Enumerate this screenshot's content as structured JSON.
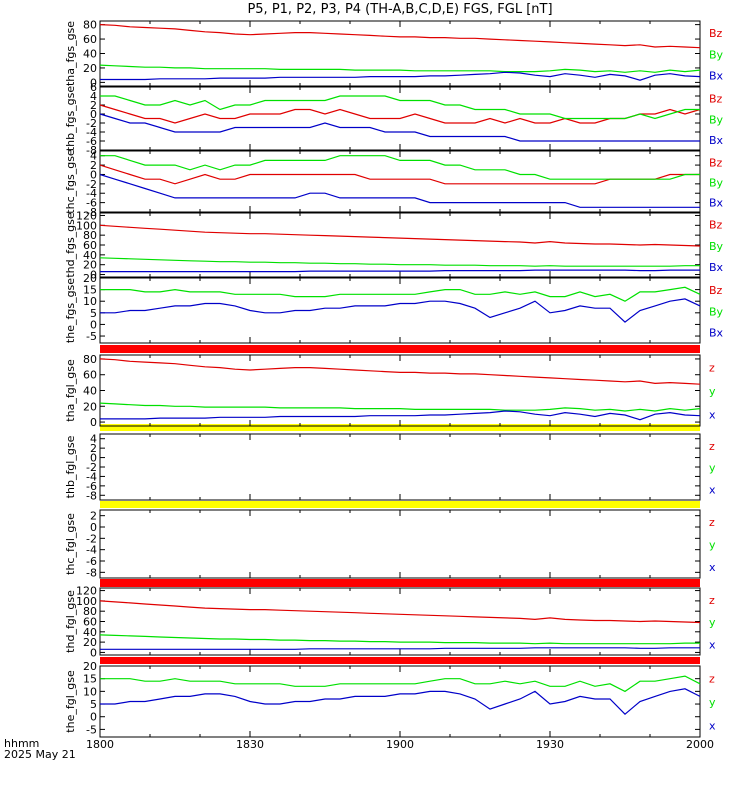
{
  "title": "P5, P1, P2, P3, P4 (TH-A,B,C,D,E) FGS, FGL [nT]",
  "footer": {
    "hhmm_label": "hhmm",
    "date_label": "2025 May 21"
  },
  "x_axis": {
    "ticks": [
      "1800",
      "1830",
      "1900",
      "1930",
      "2000"
    ]
  },
  "colors": {
    "z": "#e00000",
    "y": "#00e000",
    "x": "#0000c8",
    "bar_red": "#ff0000",
    "bar_yellow": "#ffff00"
  },
  "chart_data": [
    {
      "type": "line",
      "ylabel": "tha_fgs_gse",
      "yticks": [
        0,
        20,
        40,
        60,
        80
      ],
      "ylim": [
        -5,
        85
      ],
      "series": [
        {
          "name": "Bz",
          "color": "#e00000",
          "values": [
            80,
            79,
            77,
            76,
            75,
            74,
            72,
            70,
            69,
            67,
            66,
            67,
            68,
            69,
            69,
            68,
            67,
            66,
            65,
            64,
            63,
            63,
            62,
            62,
            61,
            61,
            60,
            59,
            58,
            57,
            56,
            55,
            54,
            53,
            52,
            51,
            52,
            49,
            50,
            49,
            48
          ]
        },
        {
          "name": "By",
          "color": "#00e000",
          "values": [
            24,
            23,
            22,
            21,
            21,
            20,
            20,
            19,
            19,
            19,
            19,
            19,
            18,
            18,
            18,
            18,
            18,
            17,
            17,
            17,
            17,
            16,
            16,
            16,
            16,
            16,
            16,
            15,
            15,
            15,
            16,
            18,
            17,
            15,
            16,
            14,
            16,
            14,
            17,
            15,
            17
          ]
        },
        {
          "name": "Bx",
          "color": "#0000c8",
          "values": [
            4,
            4,
            4,
            4,
            5,
            5,
            5,
            5,
            6,
            6,
            6,
            6,
            7,
            7,
            7,
            7,
            7,
            7,
            8,
            8,
            8,
            8,
            9,
            9,
            10,
            11,
            12,
            14,
            13,
            10,
            8,
            12,
            10,
            7,
            11,
            9,
            3,
            10,
            12,
            9,
            8
          ]
        }
      ]
    },
    {
      "type": "line",
      "ylabel": "thb_fgs_gse",
      "yticks": [
        -8,
        -6,
        -4,
        -2,
        0,
        2,
        4,
        6
      ],
      "ylim": [
        -8,
        6
      ],
      "series": [
        {
          "name": "Bz",
          "color": "#e00000",
          "values": [
            2,
            1,
            0,
            -1,
            -1,
            -2,
            -1,
            0,
            -1,
            -1,
            0,
            0,
            0,
            1,
            1,
            0,
            1,
            0,
            -1,
            -1,
            -1,
            0,
            -1,
            -2,
            -2,
            -2,
            -1,
            -2,
            -1,
            -2,
            -2,
            -1,
            -2,
            -2,
            -1,
            -1,
            0,
            0,
            1,
            0,
            1
          ]
        },
        {
          "name": "By",
          "color": "#00e000",
          "values": [
            4,
            4,
            3,
            2,
            2,
            3,
            2,
            3,
            1,
            2,
            2,
            3,
            3,
            3,
            3,
            3,
            4,
            4,
            4,
            4,
            3,
            3,
            3,
            2,
            2,
            1,
            1,
            1,
            0,
            0,
            0,
            -1,
            -1,
            -1,
            -1,
            -1,
            0,
            -1,
            0,
            1,
            1
          ]
        },
        {
          "name": "Bx",
          "color": "#0000c8",
          "values": [
            0,
            -1,
            -2,
            -2,
            -3,
            -4,
            -4,
            -4,
            -4,
            -3,
            -3,
            -3,
            -3,
            -3,
            -3,
            -2,
            -3,
            -3,
            -3,
            -4,
            -4,
            -4,
            -5,
            -5,
            -5,
            -5,
            -5,
            -5,
            -6,
            -6,
            -6,
            -6,
            -6,
            -6,
            -6,
            -6,
            -6,
            -6,
            -6,
            -6,
            -6
          ]
        }
      ]
    },
    {
      "type": "line",
      "ylabel": "thc_fgs_gse",
      "yticks": [
        -8,
        -6,
        -4,
        -2,
        0,
        2,
        4
      ],
      "ylim": [
        -8,
        5
      ],
      "series": [
        {
          "name": "Bz",
          "color": "#e00000",
          "values": [
            2,
            1,
            0,
            -1,
            -1,
            -2,
            -1,
            0,
            -1,
            -1,
            0,
            0,
            0,
            0,
            0,
            0,
            0,
            0,
            -1,
            -1,
            -1,
            -1,
            -1,
            -2,
            -2,
            -2,
            -2,
            -2,
            -2,
            -2,
            -2,
            -2,
            -2,
            -2,
            -1,
            -1,
            -1,
            -1,
            0,
            0,
            0
          ]
        },
        {
          "name": "By",
          "color": "#00e000",
          "values": [
            4,
            4,
            3,
            2,
            2,
            2,
            1,
            2,
            1,
            2,
            2,
            3,
            3,
            3,
            3,
            3,
            4,
            4,
            4,
            4,
            3,
            3,
            3,
            2,
            2,
            1,
            1,
            1,
            0,
            0,
            -1,
            -1,
            -1,
            -1,
            -1,
            -1,
            -1,
            -1,
            -1,
            0,
            0
          ]
        },
        {
          "name": "Bx",
          "color": "#0000c8",
          "values": [
            0,
            -1,
            -2,
            -3,
            -4,
            -5,
            -5,
            -5,
            -5,
            -5,
            -5,
            -5,
            -5,
            -5,
            -4,
            -4,
            -5,
            -5,
            -5,
            -5,
            -5,
            -5,
            -6,
            -6,
            -6,
            -6,
            -6,
            -6,
            -6,
            -6,
            -6,
            -6,
            -7,
            -7,
            -7,
            -7,
            -7,
            -7,
            -7,
            -7,
            -7
          ]
        }
      ]
    },
    {
      "type": "line",
      "ylabel": "thd_fgs_gse",
      "yticks": [
        0,
        20,
        40,
        60,
        80,
        100,
        120
      ],
      "ylim": [
        -5,
        125
      ],
      "series": [
        {
          "name": "Bz",
          "color": "#e00000",
          "values": [
            100,
            98,
            96,
            94,
            92,
            90,
            88,
            86,
            85,
            84,
            83,
            83,
            82,
            81,
            80,
            79,
            78,
            77,
            76,
            75,
            74,
            73,
            72,
            71,
            70,
            69,
            68,
            67,
            66,
            64,
            67,
            64,
            63,
            62,
            62,
            61,
            60,
            61,
            60,
            59,
            58
          ]
        },
        {
          "name": "By",
          "color": "#00e000",
          "values": [
            34,
            33,
            32,
            31,
            30,
            29,
            28,
            27,
            26,
            26,
            25,
            25,
            24,
            24,
            23,
            23,
            22,
            22,
            21,
            21,
            20,
            20,
            20,
            19,
            19,
            19,
            18,
            18,
            18,
            17,
            18,
            17,
            17,
            17,
            17,
            17,
            17,
            17,
            17,
            18,
            18
          ]
        },
        {
          "name": "Bx",
          "color": "#0000c8",
          "values": [
            6,
            6,
            6,
            6,
            6,
            6,
            6,
            6,
            6,
            6,
            6,
            6,
            6,
            6,
            7,
            7,
            7,
            7,
            7,
            7,
            7,
            7,
            7,
            8,
            8,
            8,
            8,
            8,
            8,
            9,
            9,
            9,
            9,
            9,
            9,
            9,
            8,
            8,
            9,
            9,
            9
          ]
        }
      ]
    },
    {
      "type": "line",
      "ylabel": "the_fgs_gse",
      "yticks": [
        -5,
        0,
        5,
        10,
        15,
        20
      ],
      "ylim": [
        -8,
        20
      ],
      "series": [
        {
          "name": "By",
          "color": "#00e000",
          "values": [
            15,
            15,
            15,
            14,
            14,
            15,
            14,
            14,
            14,
            13,
            13,
            13,
            13,
            12,
            12,
            12,
            13,
            13,
            13,
            13,
            13,
            13,
            14,
            15,
            15,
            13,
            13,
            14,
            13,
            14,
            12,
            12,
            14,
            12,
            13,
            10,
            14,
            14,
            15,
            16,
            13
          ]
        },
        {
          "name": "Bx",
          "color": "#0000c8",
          "values": [
            5,
            5,
            6,
            6,
            7,
            8,
            8,
            9,
            9,
            8,
            6,
            5,
            5,
            6,
            6,
            7,
            7,
            8,
            8,
            8,
            9,
            9,
            10,
            10,
            9,
            7,
            3,
            5,
            7,
            10,
            5,
            6,
            8,
            7,
            7,
            1,
            6,
            8,
            10,
            11,
            8
          ]
        }
      ]
    },
    {
      "type": "line",
      "ylabel": "tha_fgl_gse",
      "yticks": [
        0,
        20,
        40,
        60,
        80
      ],
      "ylim": [
        -5,
        85
      ],
      "series": [
        {
          "name": "z",
          "color": "#e00000",
          "values": [
            80,
            79,
            77,
            76,
            75,
            74,
            72,
            70,
            69,
            67,
            66,
            67,
            68,
            69,
            69,
            68,
            67,
            66,
            65,
            64,
            63,
            63,
            62,
            62,
            61,
            61,
            60,
            59,
            58,
            57,
            56,
            55,
            54,
            53,
            52,
            51,
            52,
            49,
            50,
            49,
            48
          ]
        },
        {
          "name": "y",
          "color": "#00e000",
          "values": [
            24,
            23,
            22,
            21,
            21,
            20,
            20,
            19,
            19,
            19,
            19,
            19,
            18,
            18,
            18,
            18,
            18,
            17,
            17,
            17,
            17,
            16,
            16,
            16,
            16,
            16,
            16,
            15,
            15,
            15,
            16,
            18,
            17,
            15,
            16,
            14,
            16,
            14,
            17,
            15,
            17
          ]
        },
        {
          "name": "x",
          "color": "#0000c8",
          "values": [
            4,
            4,
            4,
            4,
            5,
            5,
            5,
            5,
            6,
            6,
            6,
            6,
            7,
            7,
            7,
            7,
            7,
            7,
            8,
            8,
            8,
            8,
            9,
            9,
            10,
            11,
            12,
            14,
            13,
            10,
            8,
            12,
            10,
            7,
            11,
            9,
            3,
            10,
            12,
            9,
            8
          ]
        }
      ]
    },
    {
      "type": "line",
      "ylabel": "thb_fgl_gse",
      "yticks": [
        -8,
        -6,
        -4,
        -2,
        0,
        2,
        4
      ],
      "ylim": [
        -9,
        5
      ],
      "series": []
    },
    {
      "type": "line",
      "ylabel": "thc_fgl_gse",
      "yticks": [
        -8,
        -6,
        -4,
        -2,
        0,
        2
      ],
      "ylim": [
        -9,
        3
      ],
      "series": []
    },
    {
      "type": "line",
      "ylabel": "thd_fgl_gse",
      "yticks": [
        0,
        20,
        40,
        60,
        80,
        100,
        120
      ],
      "ylim": [
        -5,
        125
      ],
      "series": [
        {
          "name": "z",
          "color": "#e00000",
          "values": [
            100,
            98,
            96,
            94,
            92,
            90,
            88,
            86,
            85,
            84,
            83,
            83,
            82,
            81,
            80,
            79,
            78,
            77,
            76,
            75,
            74,
            73,
            72,
            71,
            70,
            69,
            68,
            67,
            66,
            64,
            67,
            64,
            63,
            62,
            62,
            61,
            60,
            61,
            60,
            59,
            58
          ]
        },
        {
          "name": "y",
          "color": "#00e000",
          "values": [
            34,
            33,
            32,
            31,
            30,
            29,
            28,
            27,
            26,
            26,
            25,
            25,
            24,
            24,
            23,
            23,
            22,
            22,
            21,
            21,
            20,
            20,
            20,
            19,
            19,
            19,
            18,
            18,
            18,
            17,
            18,
            17,
            17,
            17,
            17,
            17,
            17,
            17,
            17,
            18,
            18
          ]
        },
        {
          "name": "x",
          "color": "#0000c8",
          "values": [
            6,
            6,
            6,
            6,
            6,
            6,
            6,
            6,
            6,
            6,
            6,
            6,
            6,
            6,
            7,
            7,
            7,
            7,
            7,
            7,
            7,
            7,
            7,
            8,
            8,
            8,
            8,
            8,
            8,
            9,
            9,
            9,
            9,
            9,
            9,
            9,
            8,
            8,
            9,
            9,
            9
          ]
        }
      ]
    },
    {
      "type": "line",
      "ylabel": "the_fgl_gse",
      "yticks": [
        -5,
        0,
        5,
        10,
        15,
        20
      ],
      "ylim": [
        -8,
        20
      ],
      "series": [
        {
          "name": "y",
          "color": "#00e000",
          "values": [
            15,
            15,
            15,
            14,
            14,
            15,
            14,
            14,
            14,
            13,
            13,
            13,
            13,
            12,
            12,
            12,
            13,
            13,
            13,
            13,
            13,
            13,
            14,
            15,
            15,
            13,
            13,
            14,
            13,
            14,
            12,
            12,
            14,
            12,
            13,
            10,
            14,
            14,
            15,
            16,
            13
          ]
        },
        {
          "name": "x",
          "color": "#0000c8",
          "values": [
            5,
            5,
            6,
            6,
            7,
            8,
            8,
            9,
            9,
            8,
            6,
            5,
            5,
            6,
            6,
            7,
            7,
            8,
            8,
            8,
            9,
            9,
            10,
            10,
            9,
            7,
            3,
            5,
            7,
            10,
            5,
            6,
            8,
            7,
            7,
            1,
            6,
            8,
            10,
            11,
            8
          ]
        }
      ]
    }
  ],
  "legends": [
    [
      "Bz",
      "By",
      "Bx"
    ],
    [
      "Bz",
      "By",
      "Bx"
    ],
    [
      "Bz",
      "By",
      "Bx"
    ],
    [
      "Bz",
      "By",
      "Bx"
    ],
    [
      "Bz",
      "By",
      "Bx"
    ],
    [
      "z",
      "y",
      "x"
    ],
    [
      "z",
      "y",
      "x"
    ],
    [
      "z",
      "y",
      "x"
    ],
    [
      "z",
      "y",
      "x"
    ],
    [
      "z",
      "y",
      "x"
    ]
  ],
  "separator_bars": [
    "#ff0000",
    "#ffff00",
    "#ffff00",
    "#ff0000",
    "#ff0000"
  ]
}
